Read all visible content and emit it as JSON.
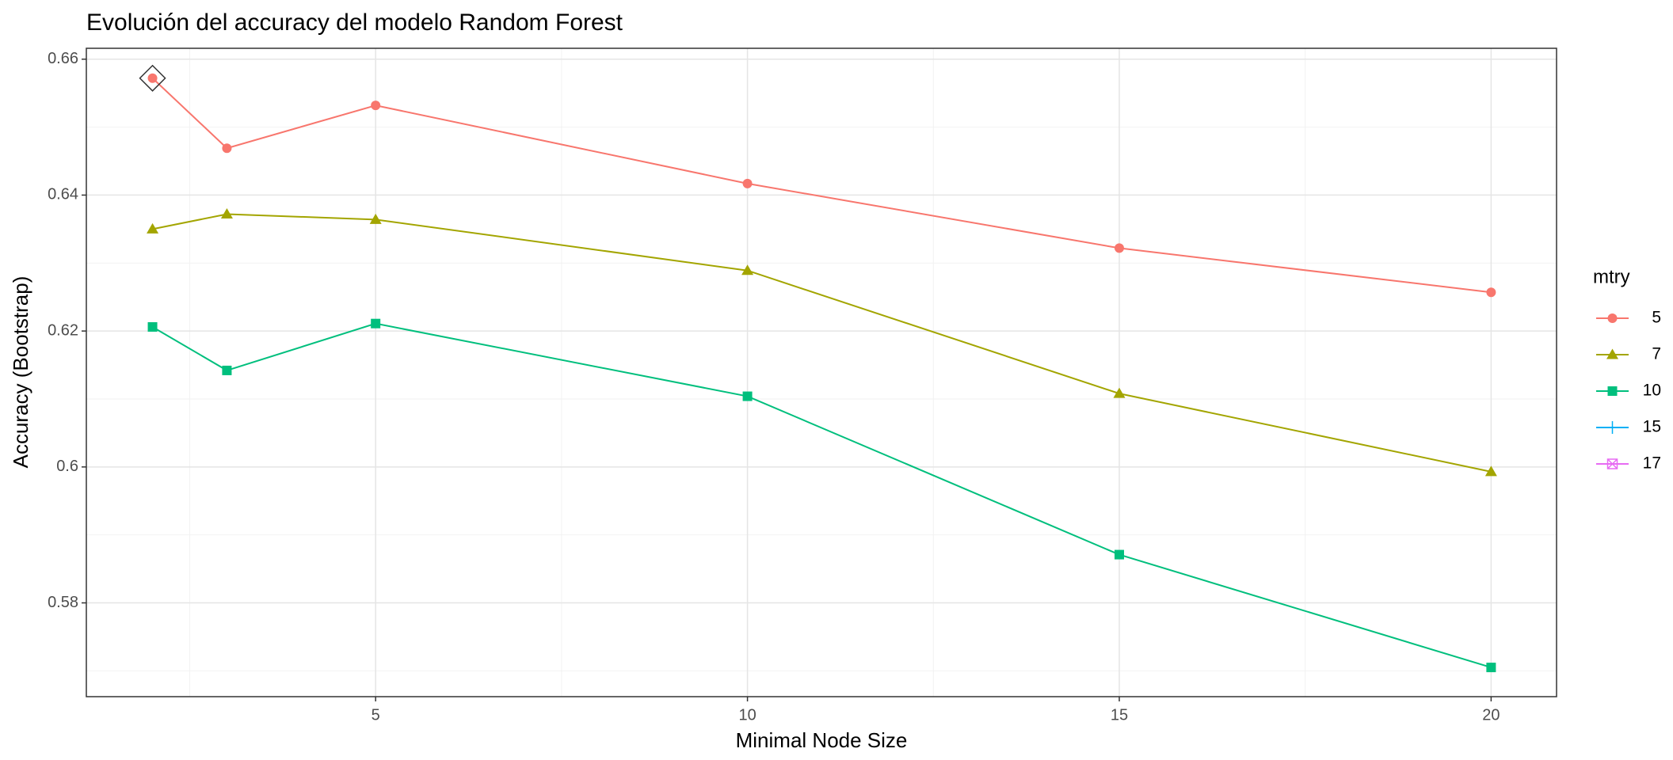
{
  "chart_data": {
    "type": "line",
    "title": "Evolución del accuracy del modelo Random Forest",
    "x_label": "Minimal Node Size",
    "y_label": "Accuracy (Bootstrap)",
    "x": [
      2,
      3,
      5,
      10,
      15,
      20
    ],
    "series": [
      {
        "name": "5",
        "color": "#F8766D",
        "shape": "circle",
        "values": [
          0.6572,
          0.6469,
          0.6532,
          0.6417,
          0.6322,
          0.6257
        ]
      },
      {
        "name": "7",
        "color": "#A3A500",
        "shape": "triangle",
        "values": [
          0.635,
          0.6372,
          0.6364,
          0.6289,
          0.6108,
          0.5993
        ]
      },
      {
        "name": "10",
        "color": "#00BF7D",
        "shape": "square",
        "values": [
          0.6206,
          0.6142,
          0.6211,
          0.6104,
          0.5871,
          0.5705
        ]
      },
      {
        "name": "15",
        "color": "#00B0F6",
        "shape": "plus",
        "values": [
          null,
          null,
          null,
          null,
          null,
          null
        ]
      },
      {
        "name": "17",
        "color": "#E76BF3",
        "shape": "square-cross",
        "values": [
          null,
          null,
          null,
          null,
          null,
          null
        ]
      }
    ],
    "legend_title": "mtry",
    "legend": "right",
    "best": {
      "series": 0,
      "index": 0
    },
    "xlim": [
      1.11,
      20.88
    ],
    "ylim": [
      0.5662,
      0.6616
    ],
    "xticks": [
      5,
      10,
      15,
      20
    ],
    "yticks": [
      0.58,
      0.6,
      0.62,
      0.64,
      0.66
    ],
    "xticks_minor": [
      2.5,
      7.5,
      12.5,
      17.5
    ],
    "yticks_minor": [
      0.57,
      0.59,
      0.61,
      0.63,
      0.65
    ],
    "grid": true
  }
}
